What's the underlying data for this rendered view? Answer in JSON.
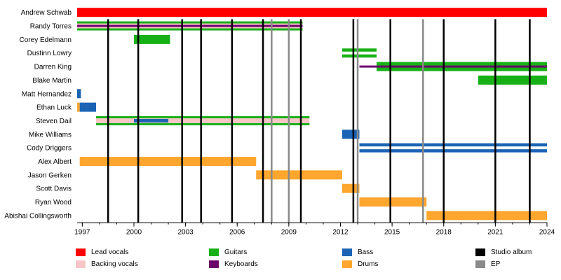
{
  "chart_data": {
    "type": "timeline",
    "title": "",
    "x_range": [
      1996.7,
      2024
    ],
    "x_ticks": [
      {
        "value": 1997,
        "label": "1997"
      },
      {
        "value": 2000,
        "label": "2000"
      },
      {
        "value": 2003,
        "label": "2003"
      },
      {
        "value": 2006,
        "label": "2006"
      },
      {
        "value": 2009,
        "label": "2009"
      },
      {
        "value": 2012,
        "label": "2012"
      },
      {
        "value": 2015,
        "label": "2015"
      },
      {
        "value": 2018,
        "label": "2018"
      },
      {
        "value": 2021,
        "label": "2021"
      },
      {
        "value": 2024,
        "label": "2024"
      }
    ],
    "roles": {
      "lead_vocals": {
        "label": "Lead vocals",
        "color": "#ff0000"
      },
      "backing_vocals": {
        "label": "Backing vocals",
        "color": "#f7c6c7"
      },
      "guitars": {
        "label": "Guitars",
        "color": "#17b117"
      },
      "keyboards": {
        "label": "Keyboards",
        "color": "#6b006b"
      },
      "bass": {
        "label": "Bass",
        "color": "#1a63b5"
      },
      "drums": {
        "label": "Drums",
        "color": "#ffa62e"
      },
      "studio_album": {
        "label": "Studio album",
        "color": "#000000"
      },
      "ep": {
        "label": "EP",
        "color": "#8a8a8a"
      }
    },
    "legend": [
      {
        "key": "lead_vocals",
        "label": "Lead vocals",
        "color": "#ff0000"
      },
      {
        "key": "backing_vocals",
        "label": "Backing vocals",
        "color": "#f7c6c7"
      },
      {
        "key": "guitars",
        "label": "Guitars",
        "color": "#17b117"
      },
      {
        "key": "keyboards",
        "label": "Keyboards",
        "color": "#6b006b"
      },
      {
        "key": "bass",
        "label": "Bass",
        "color": "#1a63b5"
      },
      {
        "key": "drums",
        "label": "Drums",
        "color": "#ffa62e"
      },
      {
        "key": "studio_album",
        "label": "Studio album",
        "color": "#000000"
      },
      {
        "key": "ep",
        "label": "EP",
        "color": "#8a8a8a"
      }
    ],
    "studio_albums": [
      1998.5,
      2000.25,
      2002.8,
      2003.9,
      2005.7,
      2007.5,
      2009.7,
      2012.75,
      2014.9,
      2018.0,
      2021.0,
      2023.0
    ],
    "eps": [
      2008.0,
      2009.0,
      2013.0,
      2016.8
    ],
    "members": [
      {
        "name": "Andrew Schwab",
        "bars": [
          {
            "role": "lead_vocals",
            "start": 1996.7,
            "end": 2024
          }
        ]
      },
      {
        "name": "Randy Torres",
        "bars": [
          {
            "role": "backing_vocals",
            "start": 1996.7,
            "end": 2009.8
          },
          {
            "role": "guitars",
            "start": 1996.7,
            "end": 2009.8,
            "layer": "top"
          },
          {
            "role": "keyboards",
            "start": 1996.7,
            "end": 2009.8,
            "layer": "mid"
          },
          {
            "role": "guitars",
            "start": 1996.7,
            "end": 2009.8,
            "layer": "bottom"
          }
        ]
      },
      {
        "name": "Corey Edelmann",
        "bars": [
          {
            "role": "guitars",
            "start": 2000.0,
            "end": 2002.1
          }
        ]
      },
      {
        "name": "Dustinn Lowry",
        "bars": [
          {
            "role": "guitars",
            "start": 2012.1,
            "end": 2014.1,
            "layer": "split"
          }
        ]
      },
      {
        "name": "Darren King",
        "bars": [
          {
            "role": "keyboards",
            "start": 2013.1,
            "end": 2014.1,
            "layer": "thin"
          },
          {
            "role": "guitars",
            "start": 2014.1,
            "end": 2024
          },
          {
            "role": "keyboards",
            "start": 2014.1,
            "end": 2024,
            "layer": "mid"
          }
        ]
      },
      {
        "name": "Blake Martin",
        "bars": [
          {
            "role": "guitars",
            "start": 2020.0,
            "end": 2024
          }
        ]
      },
      {
        "name": "Matt Hernandez",
        "bars": [
          {
            "role": "bass",
            "start": 1996.7,
            "end": 1996.92
          }
        ]
      },
      {
        "name": "Ethan Luck",
        "bars": [
          {
            "role": "drums",
            "start": 1996.7,
            "end": 1996.85
          },
          {
            "role": "bass",
            "start": 1996.85,
            "end": 1997.8
          }
        ]
      },
      {
        "name": "Steven Dail",
        "bars": [
          {
            "role": "backing_vocals",
            "start": 1997.8,
            "end": 2010.2
          },
          {
            "role": "bass",
            "start": 2000.0,
            "end": 2002.0,
            "layer": "center"
          },
          {
            "role": "guitars",
            "start": 1997.8,
            "end": 2010.2,
            "layer": "top"
          },
          {
            "role": "guitars",
            "start": 1997.8,
            "end": 2010.2,
            "layer": "bottom"
          }
        ]
      },
      {
        "name": "Mike Williams",
        "bars": [
          {
            "role": "bass",
            "start": 2012.1,
            "end": 2013.1
          }
        ]
      },
      {
        "name": "Cody Driggers",
        "bars": [
          {
            "role": "bass",
            "start": 2013.1,
            "end": 2024,
            "layer": "split"
          }
        ]
      },
      {
        "name": "Alex Albert",
        "bars": [
          {
            "role": "drums",
            "start": 1996.85,
            "end": 2007.1
          }
        ]
      },
      {
        "name": "Jason Gerken",
        "bars": [
          {
            "role": "drums",
            "start": 2007.1,
            "end": 2012.1
          }
        ]
      },
      {
        "name": "Scott Davis",
        "bars": [
          {
            "role": "drums",
            "start": 2012.1,
            "end": 2013.1
          }
        ]
      },
      {
        "name": "Ryan Wood",
        "bars": [
          {
            "role": "drums",
            "start": 2013.1,
            "end": 2017.0
          }
        ]
      },
      {
        "name": "Abishai Collingsworth",
        "bars": [
          {
            "role": "drums",
            "start": 2017.0,
            "end": 2024
          }
        ]
      }
    ]
  }
}
